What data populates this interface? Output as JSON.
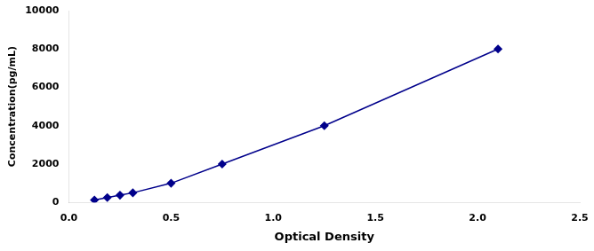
{
  "chart_data": {
    "type": "line",
    "xlabel": "Optical Density",
    "ylabel": "Concentration(pg/mL)",
    "x": [
      0.125,
      0.188,
      0.25,
      0.313,
      0.5,
      0.75,
      1.25,
      2.1
    ],
    "values": [
      125,
      250,
      375,
      500,
      1000,
      2000,
      4000,
      8000
    ],
    "color": "#00008B",
    "marker": "diamond",
    "line_style": "solid",
    "xlim": [
      0,
      2.5
    ],
    "ylim": [
      0,
      10000
    ],
    "xticks": [
      {
        "value": 0,
        "label": "0.0"
      },
      0.5,
      {
        "value": 1,
        "label": "1.0"
      },
      1.5,
      {
        "value": 2,
        "label": "2.0"
      },
      2.5
    ],
    "yticks": [
      0,
      2000,
      4000,
      6000,
      8000,
      10000
    ],
    "grid": false
  }
}
